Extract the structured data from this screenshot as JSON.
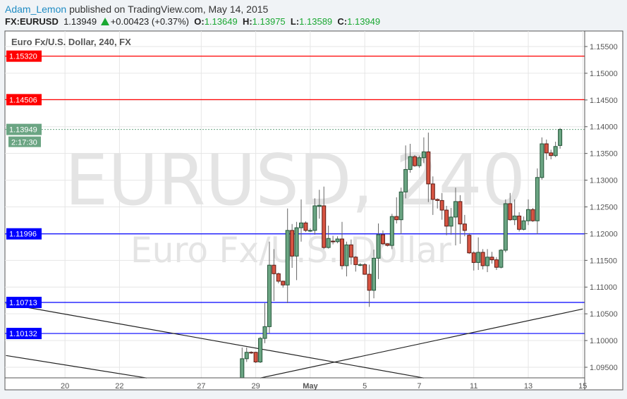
{
  "header": {
    "author": "Adam_Lemon",
    "published_text": "published on TradingView.com, May 14, 2015",
    "symbol": "FX:EURUSD",
    "last_price": "1.13949",
    "change": "+0.00423 (+0.37%)",
    "open_label": "O:",
    "open": "1.13649",
    "high_label": "H:",
    "high": "1.13975",
    "low_label": "L:",
    "low": "1.13589",
    "close_label": "C:",
    "close": "1.13949",
    "change_icon": "triangle-up-icon"
  },
  "chart_title": "Euro Fx/U.S. Dollar, 240, FX",
  "watermark": {
    "line1": "EURUSD, 240",
    "line2": "Euro Fx/U.S. Dollar"
  },
  "colors": {
    "up": "#6ba583",
    "down": "#d75442",
    "red_level": "#ff0000",
    "blue_level": "#0000ff",
    "last": "#6ba583"
  },
  "chart_data": {
    "type": "candlestick",
    "ylim": [
      1.093,
      1.158
    ],
    "y_ticks": [
      "1.15500",
      "1.15000",
      "1.14500",
      "1.14000",
      "1.13500",
      "1.13000",
      "1.12500",
      "1.12000",
      "1.11500",
      "1.11000",
      "1.10500",
      "1.10000",
      "1.09500"
    ],
    "x_ticks": [
      {
        "label": "20",
        "bar": -39
      },
      {
        "label": "22",
        "bar": -27
      },
      {
        "label": "27",
        "bar": -9
      },
      {
        "label": "29",
        "bar": 3
      },
      {
        "label": "May",
        "bar": 15
      },
      {
        "label": "5",
        "bar": 27
      },
      {
        "label": "7",
        "bar": 39
      },
      {
        "label": "11",
        "bar": 51
      },
      {
        "label": "13",
        "bar": 63
      },
      {
        "label": "15",
        "bar": 75
      }
    ],
    "levels": [
      {
        "price": 1.1532,
        "label": "1.15320",
        "color": "red"
      },
      {
        "price": 1.14506,
        "label": "1.14506",
        "color": "red"
      },
      {
        "price": 1.11996,
        "label": "1.11996",
        "color": "blue"
      },
      {
        "price": 1.10713,
        "label": "1.10713",
        "color": "blue"
      },
      {
        "price": 1.10132,
        "label": "1.10132",
        "color": "blue"
      }
    ],
    "last": {
      "price": 1.13949,
      "label": "1.13949",
      "countdown": "2:17:30"
    },
    "trendlines": [
      {
        "from": {
          "bar": -52,
          "price": 1.1069
        },
        "to": {
          "bar": 40,
          "price": 1.093
        }
      },
      {
        "from": {
          "bar": -52,
          "price": 1.0972
        },
        "to": {
          "bar": -21,
          "price": 1.093
        }
      },
      {
        "from": {
          "bar": 4,
          "price": 1.093
        },
        "to": {
          "bar": 75,
          "price": 1.1059
        }
      }
    ],
    "ohlc": [
      [
        1.0925,
        1.0987,
        1.0915,
        1.0966
      ],
      [
        1.0966,
        1.0987,
        1.096,
        1.0978
      ],
      [
        1.0978,
        1.098,
        1.0975,
        1.0977
      ],
      [
        1.0978,
        1.0979,
        1.0958,
        1.096
      ],
      [
        1.096,
        1.1007,
        1.0958,
        1.1004
      ],
      [
        1.1004,
        1.107,
        1.0995,
        1.1026
      ],
      [
        1.1026,
        1.1185,
        1.1013,
        1.1141
      ],
      [
        1.1141,
        1.1171,
        1.1074,
        1.1125
      ],
      [
        1.1125,
        1.1127,
        1.1107,
        1.1111
      ],
      [
        1.1111,
        1.1112,
        1.1099,
        1.1104
      ],
      [
        1.1104,
        1.1247,
        1.107,
        1.1206
      ],
      [
        1.1206,
        1.1218,
        1.1136,
        1.1158
      ],
      [
        1.1158,
        1.1222,
        1.1113,
        1.1211
      ],
      [
        1.1211,
        1.1264,
        1.1185,
        1.122
      ],
      [
        1.122,
        1.1223,
        1.1203,
        1.1206
      ],
      [
        1.1206,
        1.121,
        1.1203,
        1.1206
      ],
      [
        1.1206,
        1.1266,
        1.1198,
        1.1252
      ],
      [
        1.1251,
        1.1282,
        1.1228,
        1.1253
      ],
      [
        1.1252,
        1.1288,
        1.1171,
        1.1174
      ],
      [
        1.1174,
        1.1215,
        1.1172,
        1.1191
      ],
      [
        1.1186,
        1.1196,
        1.118,
        1.1185
      ],
      [
        1.1185,
        1.1195,
        1.1182,
        1.119
      ],
      [
        1.119,
        1.1222,
        1.1133,
        1.114
      ],
      [
        1.114,
        1.1185,
        1.112,
        1.1179
      ],
      [
        1.1179,
        1.1189,
        1.1142,
        1.1156
      ],
      [
        1.1156,
        1.1158,
        1.1129,
        1.1142
      ],
      [
        1.1142,
        1.1145,
        1.1139,
        1.1142
      ],
      [
        1.1142,
        1.1145,
        1.1123,
        1.1124
      ],
      [
        1.1124,
        1.1142,
        1.1063,
        1.1094
      ],
      [
        1.1094,
        1.117,
        1.1079,
        1.1154
      ],
      [
        1.1154,
        1.1219,
        1.1115,
        1.1198
      ],
      [
        1.1198,
        1.1206,
        1.1179,
        1.1181
      ],
      [
        1.1181,
        1.1182,
        1.1176,
        1.1178
      ],
      [
        1.1178,
        1.1237,
        1.1171,
        1.1232
      ],
      [
        1.1232,
        1.1268,
        1.1219,
        1.1226
      ],
      [
        1.1226,
        1.1286,
        1.1199,
        1.1278
      ],
      [
        1.1278,
        1.1365,
        1.1266,
        1.132
      ],
      [
        1.132,
        1.1368,
        1.1314,
        1.1344
      ],
      [
        1.1344,
        1.1347,
        1.1325,
        1.1327
      ],
      [
        1.1327,
        1.1346,
        1.1323,
        1.1342
      ],
      [
        1.1342,
        1.138,
        1.1332,
        1.1353
      ],
      [
        1.1353,
        1.1389,
        1.1259,
        1.1293
      ],
      [
        1.1293,
        1.1307,
        1.1235,
        1.1264
      ],
      [
        1.1264,
        1.1266,
        1.1247,
        1.1262
      ],
      [
        1.1262,
        1.1276,
        1.1226,
        1.1244
      ],
      [
        1.1244,
        1.1252,
        1.1197,
        1.1214
      ],
      [
        1.1214,
        1.1248,
        1.1198,
        1.1231
      ],
      [
        1.1231,
        1.1286,
        1.1178,
        1.126
      ],
      [
        1.126,
        1.1272,
        1.1181,
        1.1218
      ],
      [
        1.1218,
        1.1235,
        1.1195,
        1.1206
      ],
      [
        1.1197,
        1.1201,
        1.1162,
        1.1164
      ],
      [
        1.1164,
        1.1167,
        1.1131,
        1.1146
      ],
      [
        1.1146,
        1.1193,
        1.1132,
        1.1165
      ],
      [
        1.1165,
        1.1171,
        1.1133,
        1.114
      ],
      [
        1.114,
        1.1171,
        1.1128,
        1.1156
      ],
      [
        1.1156,
        1.1166,
        1.1144,
        1.1151
      ],
      [
        1.1151,
        1.1156,
        1.1132,
        1.1137
      ],
      [
        1.1137,
        1.1171,
        1.1135,
        1.1169
      ],
      [
        1.1169,
        1.1264,
        1.1165,
        1.1256
      ],
      [
        1.1256,
        1.1276,
        1.1224,
        1.1226
      ],
      [
        1.1226,
        1.1264,
        1.1216,
        1.1233
      ],
      [
        1.1233,
        1.124,
        1.1204,
        1.1208
      ],
      [
        1.1208,
        1.1232,
        1.1206,
        1.1224
      ],
      [
        1.1224,
        1.1264,
        1.1216,
        1.1245
      ],
      [
        1.1245,
        1.1248,
        1.1222,
        1.1224
      ],
      [
        1.1224,
        1.1322,
        1.1199,
        1.1305
      ],
      [
        1.1305,
        1.138,
        1.1301,
        1.1368
      ],
      [
        1.1368,
        1.1376,
        1.1338,
        1.1351
      ],
      [
        1.1351,
        1.1357,
        1.1339,
        1.1346
      ],
      [
        1.1346,
        1.1372,
        1.1343,
        1.1363
      ],
      [
        1.13649,
        1.13975,
        1.13589,
        1.13949
      ]
    ]
  }
}
